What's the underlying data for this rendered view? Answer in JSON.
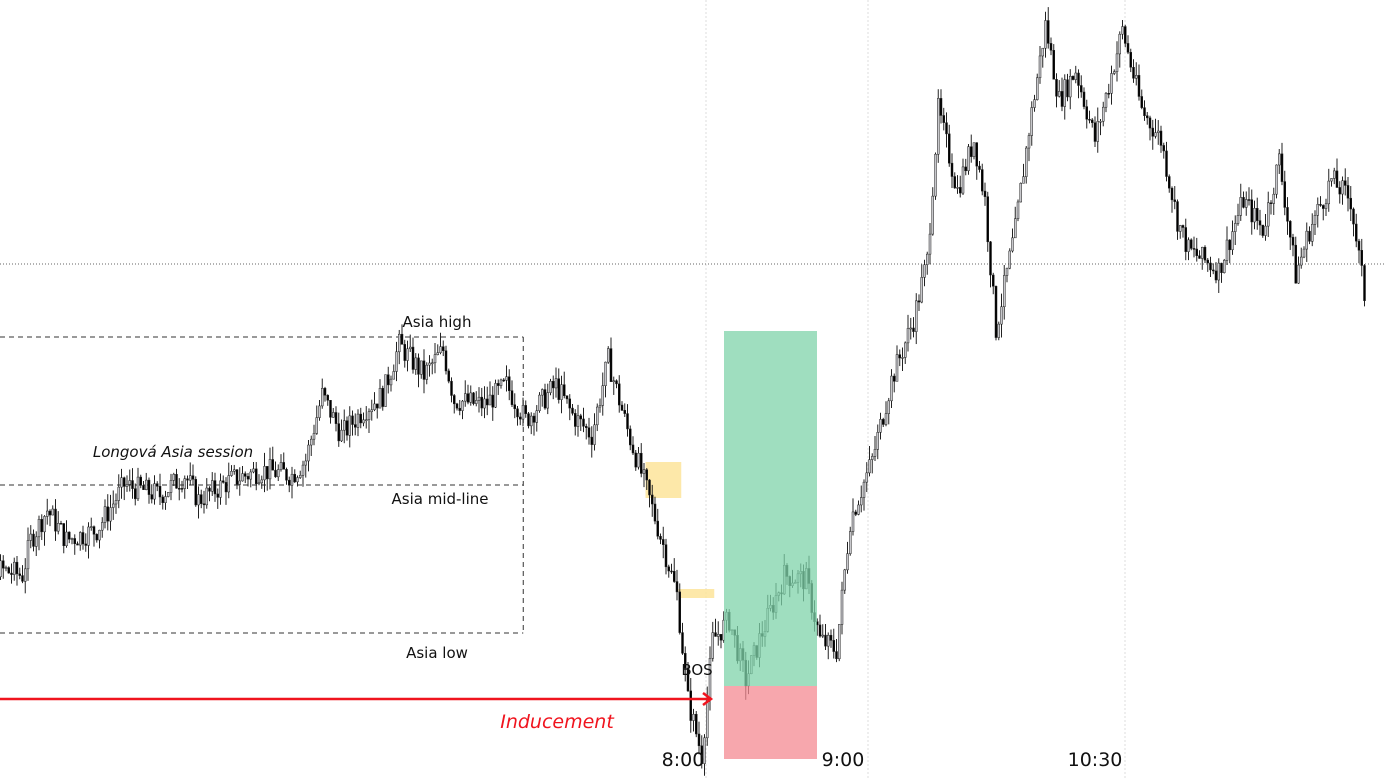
{
  "chart_data": {
    "type": "candlestick",
    "title": "",
    "xlabel": "",
    "ylabel": "",
    "x_ticks": [
      "8:00",
      "9:00",
      "10:30"
    ],
    "grid": "vertical lines at time ticks",
    "price_waypoints": [
      [
        "3:39",
        28.0
      ],
      [
        "3:46",
        26.0
      ],
      [
        "3:55",
        23.0
      ],
      [
        "4:03",
        22.5
      ],
      [
        "4:06",
        26.0
      ],
      [
        "4:12",
        29.0
      ],
      [
        "4:19",
        26.0
      ],
      [
        "4:30",
        27.0
      ],
      [
        "4:40",
        31.5
      ],
      [
        "4:53",
        30.5
      ],
      [
        "5:02",
        32.5
      ],
      [
        "5:07",
        30.0
      ],
      [
        "5:19",
        32.0
      ],
      [
        "5:30",
        33.0
      ],
      [
        "5:41",
        32.5
      ],
      [
        "5:46",
        34.0
      ],
      [
        "5:52",
        40.5
      ],
      [
        "5:59",
        36.5
      ],
      [
        "6:07",
        39.0
      ],
      [
        "6:14",
        40.5
      ],
      [
        "6:20",
        45.5
      ],
      [
        "6:29",
        42.5
      ],
      [
        "6:36",
        45.0
      ],
      [
        "6:40",
        40.0
      ],
      [
        "6:51",
        39.5
      ],
      [
        "6:59",
        41.5
      ],
      [
        "7:06",
        38.0
      ],
      [
        "7:17",
        41.5
      ],
      [
        "7:23",
        38.5
      ],
      [
        "7:30",
        36.5
      ],
      [
        "7:36",
        44.0
      ],
      [
        "7:43",
        37.0
      ],
      [
        "7:50",
        31.0
      ],
      [
        "7:56",
        25.5
      ],
      [
        "8:01",
        20.5
      ],
      [
        "8:05",
        10.0
      ],
      [
        "8:10",
        4.5
      ],
      [
        "8:14",
        16.0
      ],
      [
        "8:20",
        18.0
      ],
      [
        "8:26",
        12.0
      ],
      [
        "8:31",
        16.0
      ],
      [
        "8:40",
        22.5
      ],
      [
        "8:48",
        22.0
      ],
      [
        "8:53",
        16.0
      ],
      [
        "8:59",
        15.0
      ],
      [
        "9:04",
        28.0
      ],
      [
        "9:12",
        34.0
      ],
      [
        "9:19",
        42.0
      ],
      [
        "9:27",
        48.0
      ],
      [
        "9:32",
        54.0
      ],
      [
        "9:36",
        69.0
      ],
      [
        "9:43",
        61.0
      ],
      [
        "9:49",
        66.0
      ],
      [
        "9:53",
        60.0
      ],
      [
        "9:57",
        47.0
      ],
      [
        "10:04",
        57.0
      ],
      [
        "10:09",
        67.0
      ],
      [
        "10:15",
        77.5
      ],
      [
        "10:20",
        70.0
      ],
      [
        "10:26",
        73.0
      ],
      [
        "10:33",
        66.0
      ],
      [
        "10:43",
        77.0
      ],
      [
        "10:50",
        69.0
      ],
      [
        "10:57",
        66.0
      ],
      [
        "11:03",
        58.0
      ],
      [
        "11:07",
        55.0
      ],
      [
        "11:18",
        53.0
      ],
      [
        "11:27",
        60.0
      ],
      [
        "11:34",
        57.0
      ],
      [
        "11:40",
        64.0
      ],
      [
        "11:46",
        52.5
      ],
      [
        "11:51",
        57.0
      ],
      [
        "11:59",
        62.0
      ],
      [
        "12:06",
        60.0
      ],
      [
        "12:11",
        50.5
      ]
    ],
    "levels": {
      "asia_high": 46.3,
      "asia_mid": 31.5,
      "asia_low": 16.7,
      "horizontal_dotted": 53.6,
      "inducement": 10.1,
      "target": 46.9,
      "entry": 11.4,
      "stop": 4.1
    },
    "asia_session": {
      "start": "3:39",
      "end": "6:51"
    },
    "position": {
      "start": "8:07",
      "end": "8:41"
    },
    "fvg_zones": [
      {
        "start": "7:38",
        "end": "7:51",
        "top": 33.8,
        "bottom": 30.2
      },
      {
        "start": "7:50",
        "end": "8:03",
        "top": 21.1,
        "bottom": 20.2
      }
    ],
    "colors": {
      "up": "#c8c8cc",
      "down": "#000000",
      "profit": "#7fd3a9",
      "loss": "#f48a92",
      "fvg": "#fde49a",
      "inducement": "#f0141e"
    }
  },
  "annotations": {
    "asia_high": "Asia high",
    "asia_session": "Longová Asia session",
    "asia_mid": "Asia mid-line",
    "asia_low": "Asia low",
    "bos": "BOS",
    "inducement": "Inducement"
  }
}
